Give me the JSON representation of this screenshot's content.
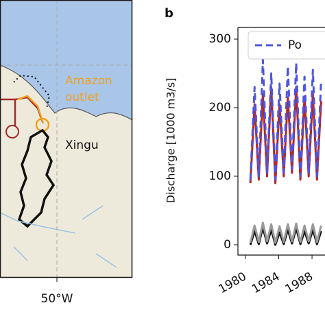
{
  "map": {
    "outlet_label": [
      "Amazon",
      "outlet"
    ],
    "river_label": "Xingu",
    "x_tick_label": "50°W"
  },
  "chart_data": {
    "type": "line",
    "panel_label": "b",
    "y_label": "Discharge [1000 m3/s]",
    "x": [
      1980.6,
      1981.1,
      1981.6,
      1982.1,
      1982.6,
      1983.1,
      1983.6,
      1984.1,
      1984.6,
      1985.1,
      1985.6,
      1986.1,
      1986.6,
      1987.1,
      1987.6,
      1988.1,
      1988.6,
      1989.1
    ],
    "series": [
      {
        "name": "Po",
        "color": "#4f55e0",
        "dash": true,
        "values": [
          95,
          230,
          100,
          270,
          105,
          250,
          95,
          235,
          105,
          260,
          110,
          265,
          100,
          245,
          105,
          255,
          100,
          240
        ]
      },
      {
        "name": null,
        "color": "#b0282a",
        "values": [
          90,
          205,
          95,
          220,
          100,
          230,
          90,
          205,
          100,
          215,
          105,
          230,
          95,
          215,
          100,
          220,
          95,
          210
        ]
      },
      {
        "name": null,
        "color": "#999999",
        "values": [
          3,
          28,
          4,
          32,
          5,
          30,
          3,
          27,
          4,
          30,
          5,
          31,
          4,
          28,
          5,
          30,
          4,
          28
        ]
      },
      {
        "name": null,
        "color": "#111111",
        "values": [
          0,
          20,
          1,
          25,
          2,
          22,
          0,
          18,
          1,
          22,
          2,
          24,
          1,
          20,
          2,
          22,
          1,
          20
        ]
      }
    ],
    "xlim": [
      1979.1,
      1989.56
    ],
    "xticks": [
      1980,
      1984,
      1988
    ],
    "ylim": [
      -15,
      317
    ],
    "yticks": [
      0,
      100,
      200,
      300
    ],
    "grid": false
  }
}
